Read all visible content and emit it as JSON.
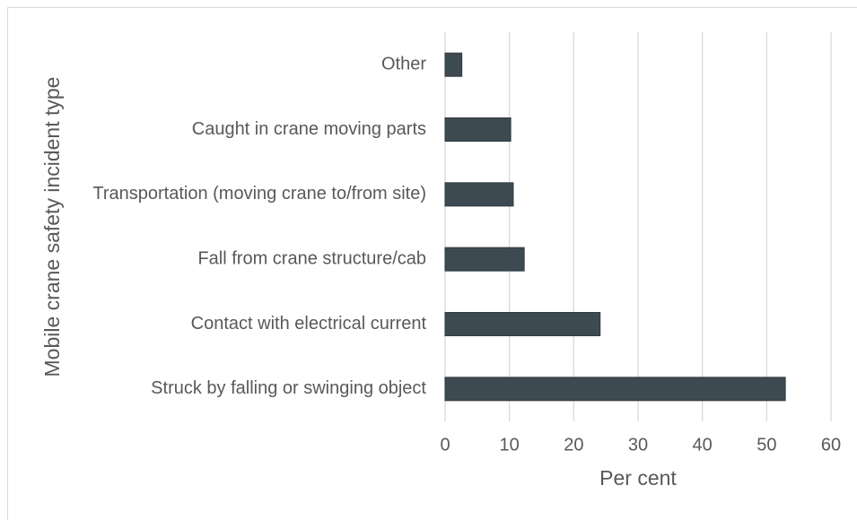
{
  "chart_data": {
    "type": "bar",
    "orientation": "horizontal",
    "categories": [
      "Other",
      "Caught in crane moving parts",
      "Transportation (moving crane to/from site)",
      "Fall from crane structure/cab",
      "Contact with electrical current",
      "Struck by falling or swinging object"
    ],
    "values": [
      2.6,
      10.2,
      10.6,
      12.3,
      24.1,
      52.9
    ],
    "color": "#3e4a52",
    "xlim": [
      0,
      60
    ],
    "xticks": [
      0,
      10,
      20,
      30,
      40,
      50,
      60
    ],
    "grid": true,
    "x_label": "Per cent",
    "y_label": "Mobile crane safety incident  type"
  }
}
